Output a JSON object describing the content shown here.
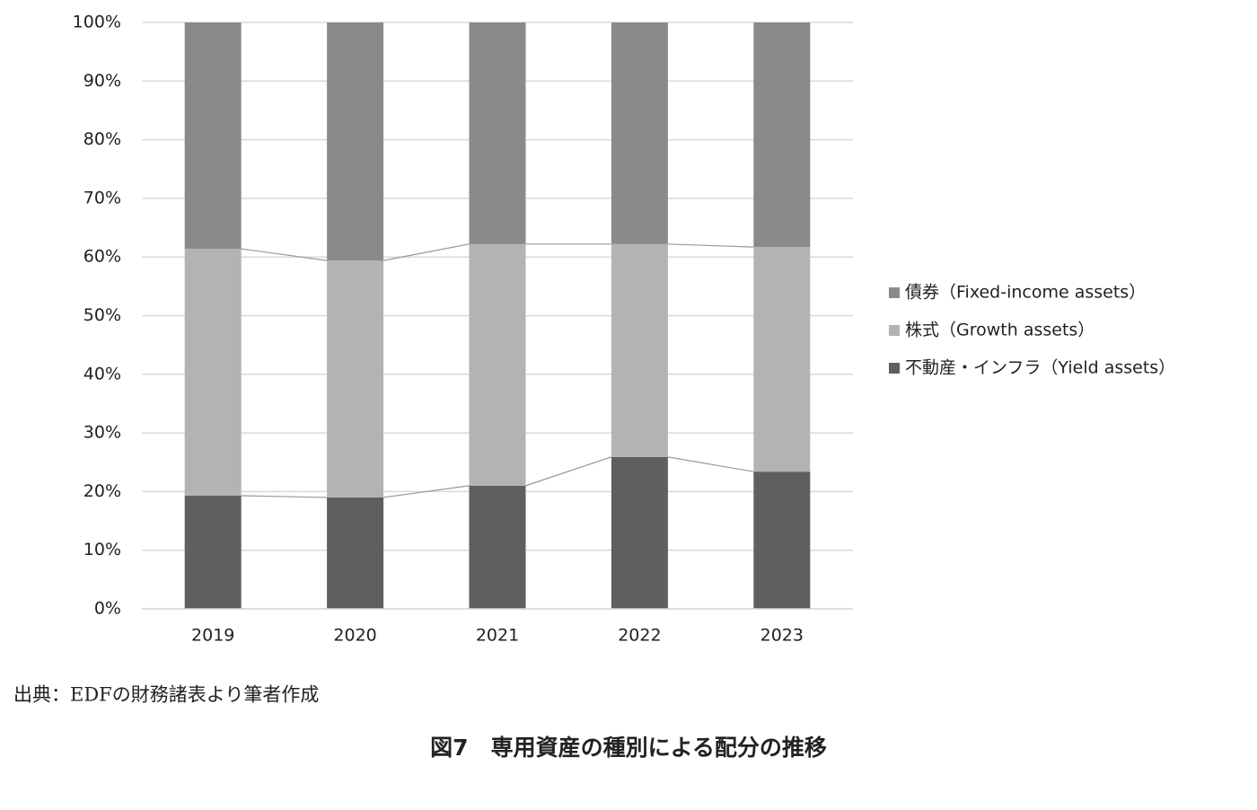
{
  "chart_data": {
    "type": "stacked_bar",
    "categories": [
      "2019",
      "2020",
      "2021",
      "2022",
      "2023"
    ],
    "series": [
      {
        "name": "不動産・インフラ（Yield assets）",
        "color": "#5f5f5f",
        "values": [
          19.3,
          19.0,
          21.0,
          25.9,
          23.4
        ]
      },
      {
        "name": "株式（Growth assets）",
        "color": "#b3b3b3",
        "values": [
          42.1,
          40.4,
          41.2,
          36.3,
          38.3
        ]
      },
      {
        "name": "債券（Fixed-income assets）",
        "color": "#8a8a8a",
        "values": [
          38.6,
          40.6,
          37.8,
          37.8,
          38.3
        ]
      }
    ],
    "ylim": [
      0,
      100
    ],
    "yticks": [
      {
        "value": 0,
        "label": "0%"
      },
      {
        "value": 10,
        "label": "10%"
      },
      {
        "value": 20,
        "label": "20%"
      },
      {
        "value": 30,
        "label": "30%"
      },
      {
        "value": 40,
        "label": "40%"
      },
      {
        "value": 50,
        "label": "50%"
      },
      {
        "value": 60,
        "label": "60%"
      },
      {
        "value": 70,
        "label": "70%"
      },
      {
        "value": 80,
        "label": "80%"
      },
      {
        "value": 90,
        "label": "90%"
      },
      {
        "value": 100,
        "label": "100%"
      }
    ],
    "grid": true,
    "legend": "right",
    "source": "出典：EDFの財務諸表より筆者作成",
    "caption": "図7　専用資産の種別による配分の推移"
  }
}
